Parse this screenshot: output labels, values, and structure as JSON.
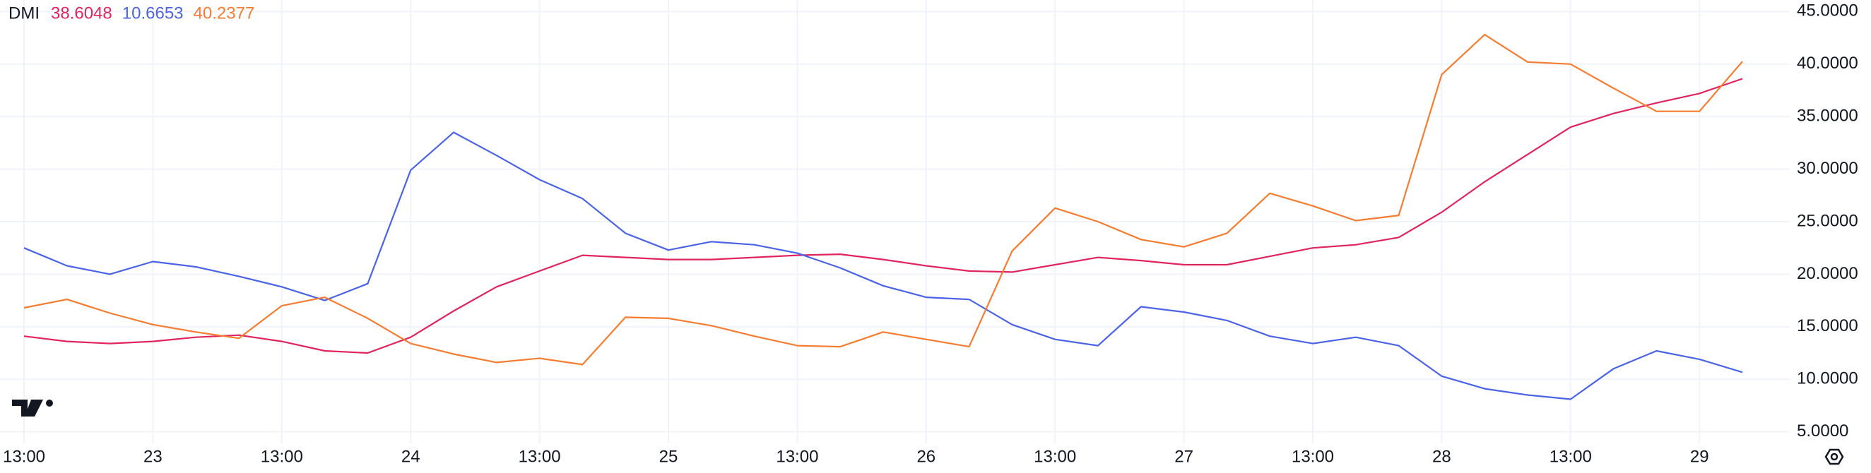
{
  "chart_data": {
    "type": "line",
    "title": "DMI",
    "categories": [
      "13:00",
      null,
      null,
      "23",
      null,
      null,
      "13:00",
      null,
      null,
      "24",
      null,
      null,
      "13:00",
      null,
      null,
      "25",
      null,
      null,
      "13:00",
      null,
      null,
      "26",
      null,
      null,
      "13:00",
      null,
      null,
      "27",
      null,
      null,
      "13:00",
      null,
      null,
      "28",
      null,
      null,
      "13:00",
      null,
      null,
      "29",
      null
    ],
    "series": [
      {
        "color": "#e0245e",
        "values": [
          14.1,
          13.6,
          13.4,
          13.6,
          14.0,
          14.2,
          13.6,
          12.7,
          12.5,
          14.0,
          16.5,
          18.8,
          20.3,
          21.8,
          21.6,
          21.4,
          21.4,
          21.6,
          21.8,
          21.9,
          21.4,
          20.8,
          20.3,
          20.2,
          20.9,
          21.6,
          21.3,
          20.9,
          20.9,
          21.7,
          22.5,
          22.8,
          23.5,
          25.9,
          28.8,
          31.4,
          34.0,
          35.3,
          36.3,
          37.2,
          38.6048
        ]
      },
      {
        "color": "#4b63e6",
        "values": [
          22.5,
          20.8,
          20.0,
          21.2,
          20.7,
          19.8,
          18.8,
          17.5,
          19.1,
          29.9,
          33.5,
          31.3,
          29.0,
          27.2,
          23.9,
          22.3,
          23.1,
          22.8,
          22.0,
          20.6,
          18.9,
          17.8,
          17.6,
          15.2,
          13.8,
          13.2,
          16.9,
          16.4,
          15.6,
          14.1,
          13.4,
          14.0,
          13.2,
          10.3,
          9.1,
          8.5,
          8.1,
          11.0,
          12.7,
          11.9,
          10.6653
        ]
      },
      {
        "color": "#f57c30",
        "values": [
          16.8,
          17.6,
          16.3,
          15.2,
          14.5,
          13.9,
          17.0,
          17.8,
          15.8,
          13.4,
          12.4,
          11.6,
          12.0,
          11.4,
          15.9,
          15.8,
          15.1,
          14.1,
          13.2,
          13.1,
          14.5,
          13.8,
          13.1,
          22.2,
          26.3,
          25.0,
          23.3,
          22.6,
          23.9,
          27.7,
          26.5,
          25.1,
          25.6,
          39.0,
          42.8,
          40.2,
          40.0,
          37.7,
          35.5,
          35.5,
          40.2377
        ]
      }
    ],
    "ylim": [
      3.9,
      46.1
    ],
    "yticks": [
      {
        "value": 5,
        "label": "5.0000"
      },
      {
        "value": 10,
        "label": "10.0000"
      },
      {
        "value": 15,
        "label": "15.0000"
      },
      {
        "value": 20,
        "label": "20.0000"
      },
      {
        "value": 25,
        "label": "25.0000"
      },
      {
        "value": 30,
        "label": "30.0000"
      },
      {
        "value": 35,
        "label": "35.0000"
      },
      {
        "value": 40,
        "label": "40.0000"
      },
      {
        "value": 45,
        "label": "45.0000"
      }
    ],
    "grid": true
  }
}
